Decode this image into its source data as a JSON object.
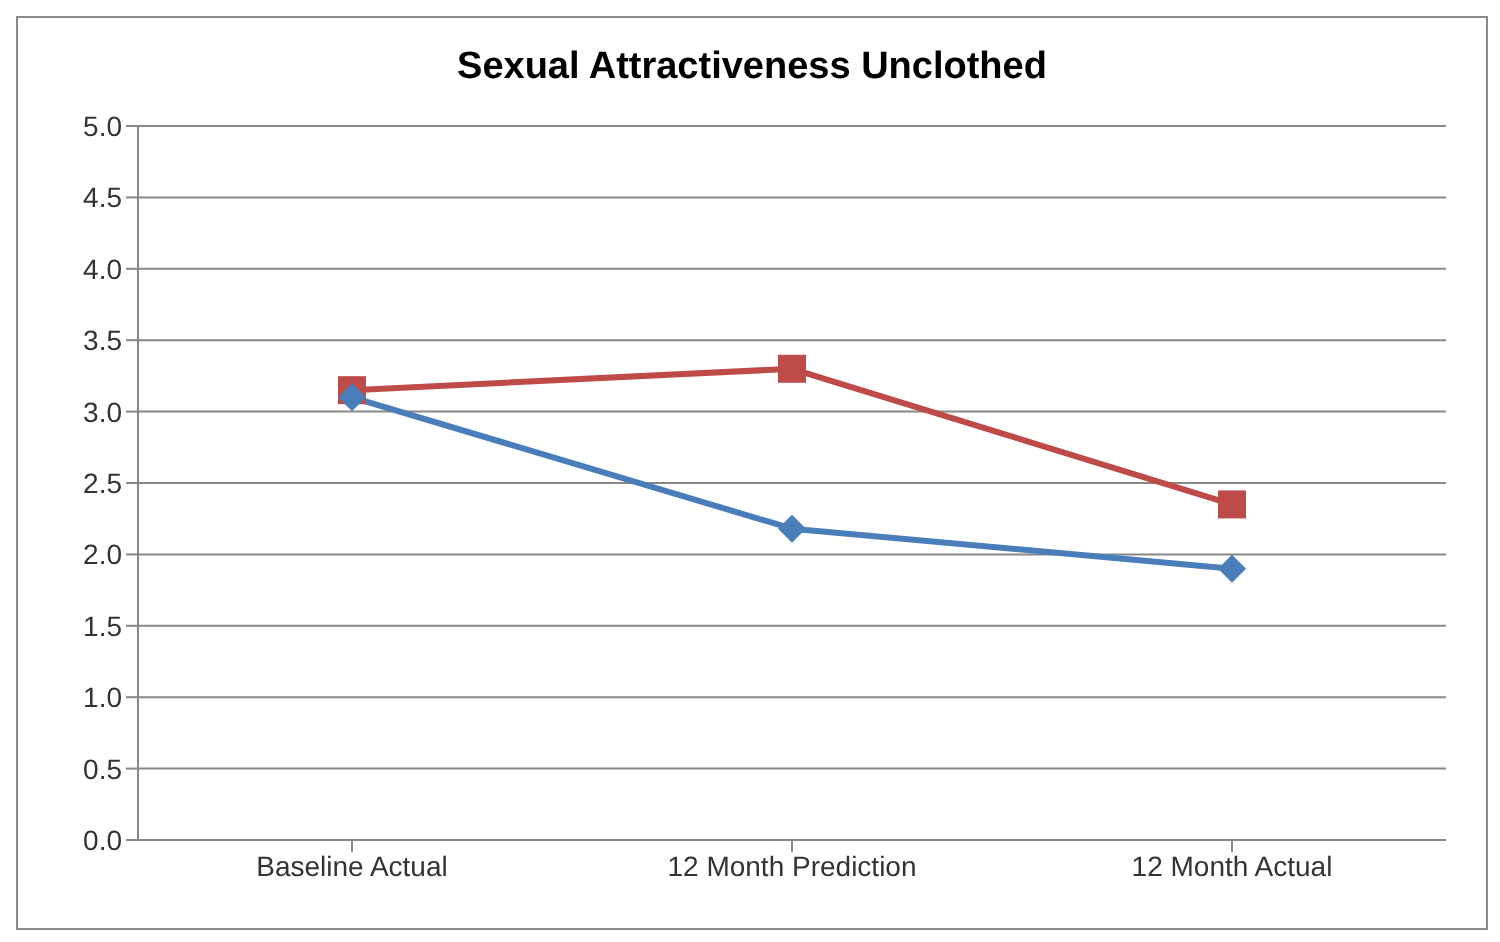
{
  "chart_data": {
    "type": "line",
    "title": "Sexual Attractiveness Unclothed",
    "categories": [
      "Baseline Actual",
      "12 Month Prediction",
      "12 Month Actual"
    ],
    "series": [
      {
        "color": "#4a7ebb",
        "marker": "diamond",
        "values": [
          3.1,
          2.18,
          1.9
        ]
      },
      {
        "color": "#be4b48",
        "marker": "square",
        "values": [
          3.15,
          3.3,
          2.35
        ]
      }
    ],
    "ylim": [
      0,
      5
    ],
    "yticks": [
      {
        "value": 0,
        "label": "0.0"
      },
      {
        "value": 0.5,
        "label": "0.5"
      },
      {
        "value": 1,
        "label": "1.0"
      },
      {
        "value": 1.5,
        "label": "1.5"
      },
      {
        "value": 2,
        "label": "2.0"
      },
      {
        "value": 2.5,
        "label": "2.5"
      },
      {
        "value": 3,
        "label": "3.0"
      },
      {
        "value": 3.5,
        "label": "3.5"
      },
      {
        "value": 4,
        "label": "4.0"
      },
      {
        "value": 4.5,
        "label": "4.5"
      },
      {
        "value": 5,
        "label": "5.0"
      }
    ],
    "grid": "y",
    "legend": false
  }
}
